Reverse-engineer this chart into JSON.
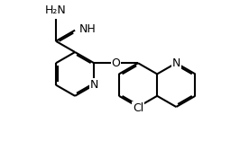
{
  "bg": "#ffffff",
  "bc": "#000000",
  "tc": "#000000",
  "lw": 1.5,
  "dbo": 0.07,
  "fs": 9.0,
  "figsize": [
    2.76,
    1.57
  ],
  "dpi": 100,
  "bl": 1.0,
  "xlim": [
    -1.0,
    9.5
  ],
  "ylim": [
    -1.5,
    4.8
  ]
}
